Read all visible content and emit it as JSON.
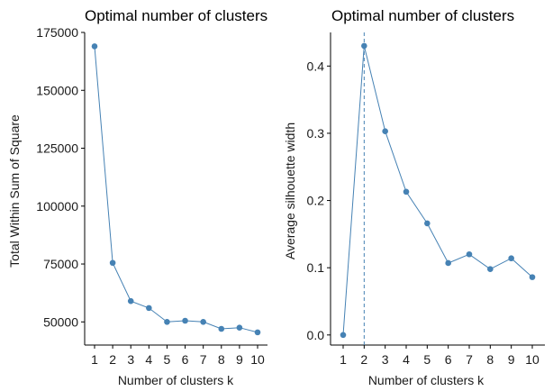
{
  "chart_data": [
    {
      "type": "line",
      "title": "Optimal number of clusters",
      "xlabel": "Number of clusters k",
      "ylabel": "Total Within Sum of Square",
      "x": [
        1,
        2,
        3,
        4,
        5,
        6,
        7,
        8,
        9,
        10
      ],
      "xticks": [
        "1",
        "2",
        "3",
        "4",
        "5",
        "6",
        "7",
        "8",
        "9",
        "10"
      ],
      "yticks": [
        50000,
        75000,
        100000,
        125000,
        150000,
        175000
      ],
      "ytick_labels": [
        "50000",
        "75000",
        "100000",
        "125000",
        "150000",
        "175000"
      ],
      "ylim": [
        40000,
        175000
      ],
      "series": [
        {
          "values": [
            169000,
            75500,
            59000,
            56000,
            50000,
            50500,
            50000,
            47000,
            47500,
            45500
          ]
        }
      ],
      "color": "#4682b4",
      "grid": false
    },
    {
      "type": "line",
      "title": "Optimal number of clusters",
      "xlabel": "Number of clusters k",
      "ylabel": "Average silhouette width",
      "x": [
        1,
        2,
        3,
        4,
        5,
        6,
        7,
        8,
        9,
        10
      ],
      "xticks": [
        "1",
        "2",
        "3",
        "4",
        "5",
        "6",
        "7",
        "8",
        "9",
        "10"
      ],
      "yticks": [
        0.0,
        0.1,
        0.2,
        0.3,
        0.4
      ],
      "ytick_labels": [
        "0.0",
        "0.1",
        "0.2",
        "0.3",
        "0.4"
      ],
      "ylim": [
        -0.015,
        0.45
      ],
      "series": [
        {
          "values": [
            0.0,
            0.43,
            0.303,
            0.213,
            0.166,
            0.107,
            0.12,
            0.098,
            0.114,
            0.086
          ]
        }
      ],
      "optimal_k": 2,
      "color": "#4682b4",
      "grid": false
    }
  ]
}
